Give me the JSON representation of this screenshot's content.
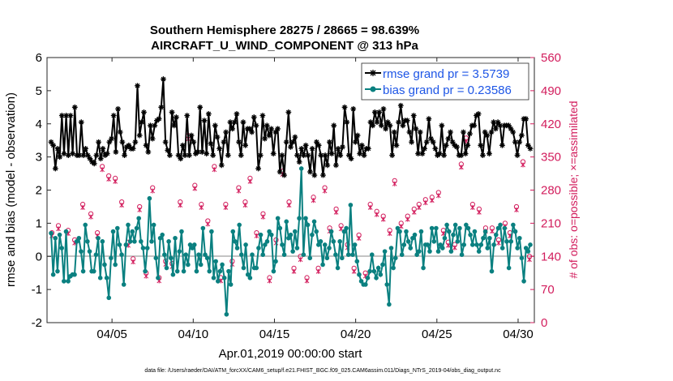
{
  "chart_data": {
    "type": "line",
    "title": "Southern Hemisphere 28275 / 28665 = 98.639%",
    "subtitle": "AIRCRAFT_U_WIND_COMPONENT @ 313 hPa",
    "xlabel": "Apr.01,2019 00:00:00 start",
    "ylabel": "rmse and bias (model - observation)",
    "y2label": "# of obs: o=possible; ×=assimilated",
    "footer": "data file: /Users/raeder/DAI/ATM_forcXX/CAM6_setup/f.e21.FHIST_BGC.f09_025.CAM6assim.011/Diags_NTrS_2019-04/obs_diag_output.nc",
    "xlim": [
      1,
      31
    ],
    "ylim": [
      -2,
      6
    ],
    "y2lim": [
      0,
      560
    ],
    "xticks": [
      5,
      10,
      15,
      20,
      25,
      30
    ],
    "xtick_labels": [
      "04/05",
      "04/10",
      "04/15",
      "04/20",
      "04/25",
      "04/30"
    ],
    "yticks": [
      -2,
      -1,
      0,
      1,
      2,
      3,
      4,
      5,
      6
    ],
    "y2ticks": [
      0,
      70,
      140,
      210,
      280,
      350,
      420,
      490,
      560
    ],
    "colors": {
      "rmse": "#000000",
      "bias": "#0a8080",
      "obs": "#d21c5c",
      "zero": "#b0b0b0",
      "legend_text": "#1e56e6"
    },
    "legend": {
      "rmse": "rmse grand pr = 3.5739",
      "bias": "bias grand pr = 0.23586"
    },
    "series": [
      {
        "name": "rmse",
        "values": [
          3.45,
          3.35,
          2.65,
          3.25,
          3.0,
          4.25,
          3.1,
          4.25,
          3.05,
          4.25,
          3.1,
          4.5,
          3.05,
          3.05,
          4.05,
          3.05,
          3.25,
          3.05,
          2.95,
          2.85,
          2.8,
          3.05,
          3.45,
          2.95,
          3.25,
          3.05,
          3.1,
          3.45,
          3.55,
          4.25,
          3.15,
          4.45,
          3.75,
          3.45,
          3.05,
          3.3,
          3.35,
          3.25,
          3.25,
          3.45,
          5.15,
          3.65,
          4.05,
          4.35,
          3.35,
          3.15,
          3.95,
          3.55,
          3.95,
          4.1,
          4.15,
          4.5,
          5.35,
          3.45,
          3.2,
          3.05,
          4.35,
          3.95,
          4.2,
          3.05,
          2.95,
          3.35,
          3.05,
          4.25,
          3.05,
          3.65,
          3.45,
          3.1,
          3.15,
          4.5,
          3.15,
          4.1,
          3.1,
          4.3,
          3.4,
          3.05,
          3.95,
          3.6,
          3.25,
          2.75,
          3.45,
          3.75,
          3.05,
          4.05,
          3.85,
          4.05,
          4.3,
          3.45,
          3.05,
          4.05,
          3.35,
          3.85,
          3.85,
          3.75,
          4.2,
          3.95,
          2.65,
          3.05,
          4.25,
          3.55,
          3.95,
          3.65,
          3.85,
          3.1,
          3.75,
          3.85,
          2.55,
          3.05,
          2.45,
          3.45,
          4.35,
          3.3,
          3.45,
          3.6,
          3.05,
          2.85,
          3.25,
          3.05,
          3.35,
          3.05,
          2.55,
          3.25,
          2.45,
          3.45,
          3.35,
          3.05,
          2.45,
          3.05,
          2.75,
          3.45,
          3.1,
          3.95,
          2.75,
          3.25,
          3.05,
          3.3,
          4.5,
          4.05,
          3.05,
          2.95,
          4.45,
          3.45,
          3.65,
          3.1,
          3.35,
          3.05,
          3.25,
          3.25,
          4.05,
          3.95,
          4.35,
          4.05,
          4.35,
          3.95,
          4.45,
          3.85,
          4.05,
          3.95,
          3.05,
          3.75,
          3.35,
          4.05,
          4.55,
          3.95,
          4.1,
          4.1,
          3.75,
          3.45,
          4.25,
          3.85,
          3.1,
          3.75,
          3.1,
          3.25,
          3.45,
          4.15,
          3.55,
          3.45,
          3.25,
          3.05,
          3.1,
          3.95,
          3.05,
          3.35,
          3.55,
          3.75,
          3.45,
          3.35,
          3.3,
          3.05,
          3.05,
          3.75,
          3.1,
          3.35,
          3.7,
          3.95,
          3.95,
          4.25,
          4.3,
          3.35,
          3.05,
          3.75,
          3.65,
          3.1,
          3.75,
          4.05,
          3.85,
          4.05,
          3.95,
          3.35,
          3.95,
          3.95,
          3.95,
          3.85,
          3.75,
          3.45,
          3.05,
          3.45,
          3.65,
          4.15,
          4.15,
          3.35,
          3.25
        ]
      },
      {
        "name": "bias",
        "values": [
          0.7,
          -0.55,
          0.55,
          -0.45,
          0.65,
          0.25,
          -0.75,
          0.75,
          -0.75,
          -0.6,
          -0.55,
          -0.55,
          0.45,
          0.55,
          0.15,
          -0.45,
          0.95,
          0.45,
          0.15,
          -0.45,
          -0.45,
          0.05,
          0.55,
          -0.65,
          0.45,
          -0.25,
          -0.65,
          -1.25,
          -0.05,
          0.75,
          -0.25,
          0.85,
          0.35,
          0.05,
          -0.85,
          0.35,
          0.95,
          0.45,
          0.75,
          0.45,
          0.85,
          1.15,
          0.45,
          0.25,
          -0.45,
          0.25,
          1.75,
          0.45,
          0.95,
          -0.05,
          -0.65,
          0.55,
          0.65,
          0.05,
          -0.35,
          0.45,
          -0.05,
          -0.55,
          0.55,
          -0.45,
          0.15,
          0.75,
          -0.45,
          0.05,
          -0.25,
          0.35,
          0.25,
          0.35,
          -0.45,
          0.05,
          -0.25,
          0.85,
          0.05,
          -0.05,
          -0.45,
          0.75,
          -0.65,
          -0.15,
          -0.75,
          -0.45,
          -0.25,
          -0.65,
          -1.75,
          -0.45,
          -0.85,
          0.75,
          0.45,
          0.25,
          0.95,
          0.05,
          -0.35,
          0.35,
          -0.55,
          -0.65,
          0.05,
          -0.35,
          -0.35,
          0.25,
          0.65,
          0.05,
          0.35,
          0.45,
          0.75,
          0.65,
          -0.45,
          -0.15,
          1.15,
          0.85,
          0.35,
          0.05,
          1.05,
          0.55,
          0.65,
          0.15,
          0.75,
          0.25,
          1.15,
          2.65,
          0.05,
          1.15,
          0.95,
          -0.05,
          0.65,
          1.05,
          0.75,
          0.35,
          0.45,
          -0.25,
          0.35,
          -0.05,
          0.25,
          0.75,
          0.45,
          0.05,
          -0.35,
          0.45,
          -0.05,
          0.75,
          0.85,
          0.05,
          1.55,
          0.05,
          0.35,
          -0.15,
          -0.55,
          -0.75,
          -0.85,
          -0.85,
          -0.65,
          -0.45,
          0.05,
          -0.45,
          -0.65,
          -0.35,
          -0.55,
          -0.25,
          0.15,
          -0.85,
          -1.45,
          0.25,
          -0.35,
          -0.05,
          0.85,
          0.75,
          0.05,
          0.35,
          0.75,
          0.45,
          0.25,
          0.55,
          0.65,
          0.05,
          0.15,
          0.75,
          -0.35,
          0.35,
          0.35,
          0.15,
          0.85,
          0.45,
          0.85,
          0.15,
          0.35,
          0.25,
          0.55,
          0.95,
          0.75,
          0.15,
          0.65,
          0.95,
          0.45,
          0.85,
          0.05,
          0.35,
          0.95,
          0.85,
          0.65,
          0.35,
          0.75,
          0.35,
          0.15,
          0.35,
          0.55,
          0.75,
          0.25,
          0.55,
          -0.45,
          0.35,
          0.65,
          0.85,
          0.95,
          0.25,
          0.85,
          0.45,
          -0.35,
          0.45,
          0.95,
          0.75,
          0.25,
          0.55,
          -0.05,
          -0.75,
          0.25,
          0.15,
          0.35
        ]
      },
      {
        "name": "obs_possible",
        "points": [
          [
            1.3,
            190
          ],
          [
            1.7,
            205
          ],
          [
            2.3,
            195
          ],
          [
            2.7,
            175
          ],
          [
            3.2,
            250
          ],
          [
            3.7,
            230
          ],
          [
            4.1,
            190
          ],
          [
            4.4,
            330
          ],
          [
            4.8,
            310
          ],
          [
            5.2,
            305
          ],
          [
            5.6,
            255
          ],
          [
            6.0,
            170
          ],
          [
            6.3,
            135
          ],
          [
            6.7,
            245
          ],
          [
            7.1,
            105
          ],
          [
            7.5,
            285
          ],
          [
            7.9,
            95
          ],
          [
            8.3,
            130
          ],
          [
            8.7,
            125
          ],
          [
            9.2,
            255
          ],
          [
            9.7,
            395
          ],
          [
            10.1,
            290
          ],
          [
            10.5,
            250
          ],
          [
            10.9,
            215
          ],
          [
            11.3,
            330
          ],
          [
            11.7,
            95
          ],
          [
            12.0,
            250
          ],
          [
            12.4,
            130
          ],
          [
            12.8,
            285
          ],
          [
            13.2,
            255
          ],
          [
            13.5,
            305
          ],
          [
            13.9,
            190
          ],
          [
            14.3,
            230
          ],
          [
            14.7,
            95
          ],
          [
            15.1,
            175
          ],
          [
            15.5,
            320
          ],
          [
            15.9,
            255
          ],
          [
            16.2,
            115
          ],
          [
            16.6,
            140
          ],
          [
            17.0,
            95
          ],
          [
            17.4,
            265
          ],
          [
            17.7,
            115
          ],
          [
            18.1,
            285
          ],
          [
            18.4,
            200
          ],
          [
            18.8,
            240
          ],
          [
            19.1,
            205
          ],
          [
            19.5,
            165
          ],
          [
            19.9,
            115
          ],
          [
            20.2,
            185
          ],
          [
            20.6,
            105
          ],
          [
            20.9,
            250
          ],
          [
            21.3,
            235
          ],
          [
            21.7,
            225
          ],
          [
            22.1,
            195
          ],
          [
            22.4,
            300
          ],
          [
            22.8,
            210
          ],
          [
            23.2,
            225
          ],
          [
            23.6,
            240
          ],
          [
            23.9,
            250
          ],
          [
            24.3,
            260
          ],
          [
            24.7,
            265
          ],
          [
            25.1,
            275
          ],
          [
            25.4,
            195
          ],
          [
            25.7,
            170
          ],
          [
            26.1,
            165
          ],
          [
            26.5,
            335
          ],
          [
            26.8,
            390
          ],
          [
            27.2,
            250
          ],
          [
            27.6,
            240
          ],
          [
            28.0,
            200
          ],
          [
            28.4,
            200
          ],
          [
            28.8,
            175
          ],
          [
            29.2,
            210
          ],
          [
            29.5,
            190
          ],
          [
            29.9,
            245
          ],
          [
            30.3,
            340
          ],
          [
            30.7,
            140
          ]
        ]
      }
    ]
  }
}
